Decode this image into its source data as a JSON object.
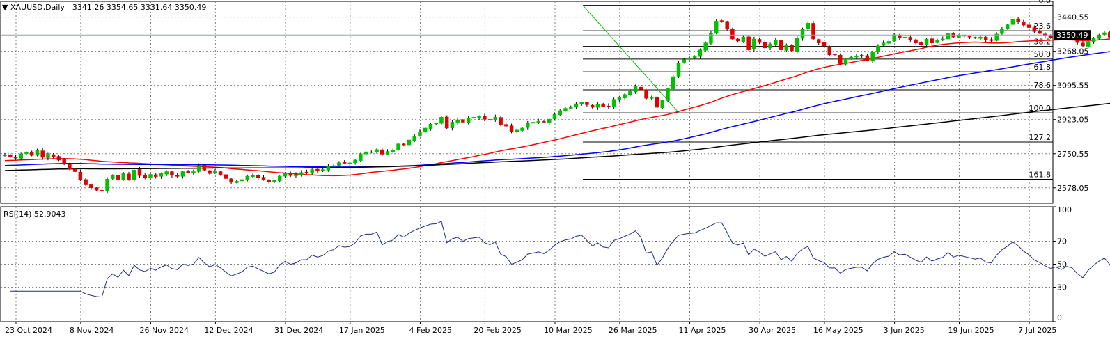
{
  "header": {
    "triangle": "▼",
    "symbol": "XAUUSD,Daily",
    "open": "3341.26",
    "high": "3354.65",
    "low": "3331.64",
    "close": "3350.49"
  },
  "rsi_header": {
    "label": "RSI(14)",
    "value": "52.9043"
  },
  "colors": {
    "bull": "#00c000",
    "bear": "#e00000",
    "ma_red": "#ff0000",
    "ma_blue": "#0000ff",
    "ma_black": "#000000",
    "rsi_line": "#1e2a8c",
    "fib_trend": "#00c000",
    "grid": "#7f7f7f",
    "price_tag_bg": "#000000",
    "price_tag_fg": "#ffffff"
  },
  "chart_data": [
    {
      "type": "candlestick",
      "timeframe": "Daily",
      "ylim": [
        2500,
        3520
      ],
      "y_ticks": [
        "3440.55",
        "3268.05",
        "3095.55",
        "2923.05",
        "2750.55",
        "2578.05"
      ],
      "current_price": "3350.49",
      "x_tick_labels": [
        "23 Oct 2024",
        "8 Nov 2024",
        "26 Nov 2024",
        "12 Dec 2024",
        "31 Dec 2024",
        "17 Jan 2025",
        "4 Feb 2025",
        "20 Feb 2025",
        "10 Mar 2025",
        "26 Mar 2025",
        "11 Apr 2025",
        "30 Apr 2025",
        "16 May 2025",
        "3 Jun 2025",
        "19 Jun 2025",
        "7 Jul 2025"
      ],
      "x_tick_index": [
        0,
        12,
        25,
        37,
        50,
        62,
        75,
        87,
        100,
        112,
        125,
        138,
        150,
        163,
        175,
        188
      ],
      "closes": [
        2745,
        2736,
        2728,
        2750,
        2758,
        2742,
        2768,
        2732,
        2748,
        2736,
        2718,
        2698,
        2672,
        2660,
        2618,
        2593,
        2578,
        2566,
        2562,
        2622,
        2640,
        2620,
        2650,
        2618,
        2668,
        2640,
        2630,
        2646,
        2635,
        2650,
        2660,
        2642,
        2636,
        2660,
        2654,
        2660,
        2690,
        2668,
        2650,
        2660,
        2645,
        2625,
        2606,
        2612,
        2620,
        2637,
        2640,
        2630,
        2620,
        2610,
        2615,
        2637,
        2650,
        2640,
        2645,
        2655,
        2655,
        2670,
        2665,
        2670,
        2685,
        2690,
        2705,
        2702,
        2704,
        2718,
        2750,
        2760,
        2760,
        2772,
        2748,
        2762,
        2770,
        2800,
        2795,
        2820,
        2840,
        2860,
        2880,
        2900,
        2905,
        2935,
        2880,
        2910,
        2922,
        2910,
        2930,
        2935,
        2940,
        2925,
        2920,
        2935,
        2898,
        2890,
        2862,
        2870,
        2880,
        2905,
        2910,
        2915,
        2910,
        2925,
        2950,
        2968,
        2980,
        2985,
        3003,
        3010,
        2998,
        2985,
        3000,
        2990,
        2988,
        3025,
        3035,
        3050,
        3065,
        3090,
        3075,
        3030,
        3035,
        2985,
        3020,
        3080,
        3140,
        3210,
        3225,
        3235,
        3242,
        3275,
        3310,
        3360,
        3420,
        3420,
        3380,
        3330,
        3320,
        3340,
        3275,
        3330,
        3312,
        3285,
        3305,
        3325,
        3275,
        3300,
        3270,
        3335,
        3382,
        3410,
        3330,
        3310,
        3295,
        3250,
        3250,
        3205,
        3230,
        3238,
        3245,
        3245,
        3220,
        3265,
        3295,
        3310,
        3318,
        3352,
        3335,
        3340,
        3325,
        3310,
        3300,
        3330,
        3310,
        3322,
        3330,
        3360,
        3340,
        3350,
        3345,
        3340,
        3335,
        3340,
        3325,
        3322,
        3355,
        3382,
        3402,
        3430,
        3418,
        3400,
        3388,
        3368,
        3358,
        3345,
        3335,
        3340,
        3330,
        3340,
        3335,
        3312,
        3295,
        3318,
        3335,
        3350,
        3362,
        3340,
        3330,
        3325,
        3340,
        3340,
        3358,
        3340,
        3350,
        3350
      ],
      "indicators": [
        {
          "name": "SMA 50",
          "color": "#ff0000"
        },
        {
          "name": "SMA 100",
          "color": "#0000ff"
        },
        {
          "name": "SMA 200",
          "color": "#000000"
        }
      ],
      "fibonacci": {
        "high": 3500,
        "low": 2957,
        "levels": [
          {
            "ratio": 0.0,
            "label": "0.0"
          },
          {
            "ratio": 0.236,
            "label": "23.6"
          },
          {
            "ratio": 0.382,
            "label": "38.2"
          },
          {
            "ratio": 0.5,
            "label": "50.0"
          },
          {
            "ratio": 0.618,
            "label": "61.8"
          },
          {
            "ratio": 0.786,
            "label": "78.6"
          },
          {
            "ratio": 1.0,
            "label": "100.0"
          },
          {
            "ratio": 1.272,
            "label": "127.2"
          },
          {
            "ratio": 1.618,
            "label": "161.8"
          }
        ]
      }
    },
    {
      "type": "line",
      "name": "RSI(14)",
      "ylim": [
        0,
        100
      ],
      "y_ticks": [
        "100",
        "70",
        "50",
        "30",
        "0"
      ],
      "levels": [
        70,
        50,
        30
      ],
      "current_value": "52.9043"
    }
  ]
}
